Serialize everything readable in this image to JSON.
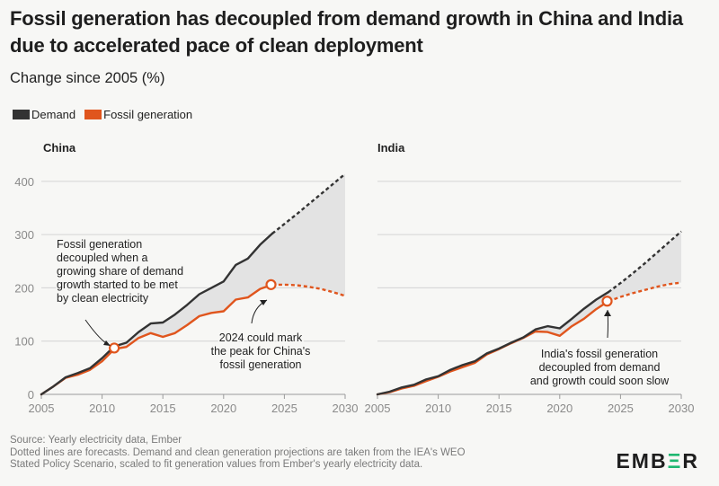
{
  "title": "Fossil generation has decoupled from demand growth in China and India due to accelerated pace of clean deployment",
  "subtitle": "Change since 2005 (%)",
  "legend": [
    {
      "label": "Demand",
      "color": "#333333"
    },
    {
      "label": "Fossil generation",
      "color": "#e0551d"
    }
  ],
  "footer": {
    "source": "Source: Yearly electricity data, Ember",
    "note1": "Dotted lines are forecasts. Demand and clean generation projections are taken from the IEA's WEO",
    "note2": "Stated Policy Scenario, scaled to fit generation values from Ember's yearly electricity data."
  },
  "logo": {
    "pre": "EMB",
    "accent": "Ξ",
    "post": "R"
  },
  "chart_data": [
    {
      "type": "line",
      "title": "China",
      "xlim": [
        2005,
        2030
      ],
      "ylim": [
        0,
        420
      ],
      "xticks": [
        2005,
        2010,
        2015,
        2020,
        2025,
        2030
      ],
      "yticks": [
        0,
        100,
        200,
        300,
        400
      ],
      "grid": true,
      "series": [
        {
          "name": "Demand",
          "color": "#333333",
          "x": [
            2005,
            2006,
            2007,
            2008,
            2009,
            2010,
            2011,
            2012,
            2013,
            2014,
            2015,
            2016,
            2017,
            2018,
            2019,
            2020,
            2021,
            2022,
            2023,
            2024
          ],
          "values": [
            0,
            15,
            32,
            40,
            49,
            68,
            90,
            97,
            117,
            133,
            135,
            150,
            168,
            188,
            200,
            212,
            243,
            255,
            281,
            302
          ]
        },
        {
          "name": "Demand (forecast)",
          "color": "#333333",
          "dashed": true,
          "x": [
            2024,
            2025,
            2026,
            2027,
            2028,
            2029,
            2030
          ],
          "values": [
            302,
            320,
            338,
            357,
            376,
            395,
            414
          ]
        },
        {
          "name": "Fossil generation",
          "color": "#e0551d",
          "x": [
            2005,
            2006,
            2007,
            2008,
            2009,
            2010,
            2011,
            2012,
            2013,
            2014,
            2015,
            2016,
            2017,
            2018,
            2019,
            2020,
            2021,
            2022,
            2023,
            2024
          ],
          "values": [
            0,
            15,
            31,
            37,
            46,
            62,
            85,
            89,
            106,
            115,
            108,
            115,
            130,
            147,
            153,
            156,
            178,
            182,
            198,
            206
          ]
        },
        {
          "name": "Fossil generation (forecast)",
          "color": "#e0551d",
          "dashed": true,
          "x": [
            2024,
            2025,
            2026,
            2027,
            2028,
            2029,
            2030
          ],
          "values": [
            206,
            206,
            205,
            202,
            198,
            192,
            185
          ]
        }
      ],
      "annotations": [
        {
          "x": 2011,
          "y": 87,
          "lines": [
            "Fossil generation",
            "decoupled when a",
            "growing share of demand",
            "growth started to be met",
            "by clean electricity"
          ]
        },
        {
          "x": 2023.9,
          "y": 206,
          "lines": [
            "2024 could mark",
            "the peak for China's",
            "fossil generation"
          ]
        }
      ]
    },
    {
      "type": "line",
      "title": "India",
      "xlim": [
        2005,
        2030
      ],
      "ylim": [
        0,
        420
      ],
      "xticks": [
        2005,
        2010,
        2015,
        2020,
        2025,
        2030
      ],
      "yticks": [
        0,
        100,
        200,
        300,
        400
      ],
      "grid": true,
      "series": [
        {
          "name": "Demand",
          "color": "#333333",
          "x": [
            2005,
            2006,
            2007,
            2008,
            2009,
            2010,
            2011,
            2012,
            2013,
            2014,
            2015,
            2016,
            2017,
            2018,
            2019,
            2020,
            2021,
            2022,
            2023,
            2024
          ],
          "values": [
            0,
            5,
            13,
            18,
            28,
            34,
            46,
            55,
            62,
            77,
            86,
            97,
            107,
            122,
            128,
            124,
            142,
            161,
            178,
            192
          ]
        },
        {
          "name": "Demand (forecast)",
          "color": "#333333",
          "dashed": true,
          "x": [
            2024,
            2025,
            2026,
            2027,
            2028,
            2029,
            2030
          ],
          "values": [
            192,
            209,
            227,
            246,
            266,
            286,
            306
          ]
        },
        {
          "name": "Fossil generation",
          "color": "#e0551d",
          "x": [
            2005,
            2006,
            2007,
            2008,
            2009,
            2010,
            2011,
            2012,
            2013,
            2014,
            2015,
            2016,
            2017,
            2018,
            2019,
            2020,
            2021,
            2022,
            2023,
            2024
          ],
          "values": [
            0,
            4,
            11,
            16,
            25,
            33,
            43,
            51,
            59,
            75,
            85,
            96,
            106,
            118,
            117,
            110,
            128,
            142,
            160,
            175
          ]
        },
        {
          "name": "Fossil generation (forecast)",
          "color": "#e0551d",
          "dashed": true,
          "x": [
            2024,
            2025,
            2026,
            2027,
            2028,
            2029,
            2030
          ],
          "values": [
            175,
            183,
            190,
            196,
            202,
            207,
            210
          ]
        }
      ],
      "annotations": [
        {
          "x": 2023.9,
          "y": 175,
          "lines": [
            "India's fossil generation",
            "decoupled from demand",
            "and growth could soon slow"
          ]
        }
      ]
    }
  ]
}
